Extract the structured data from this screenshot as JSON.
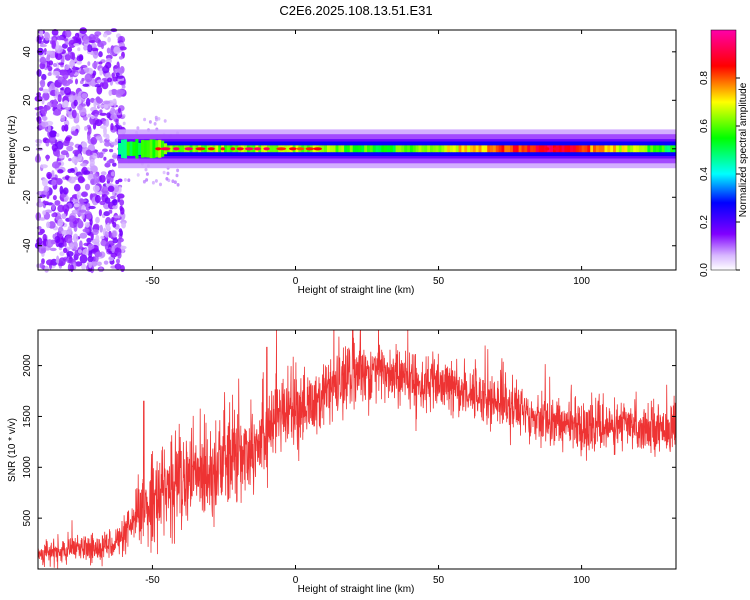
{
  "title": "C2E6.2025.108.13.51.E31",
  "chart_data": [
    {
      "type": "heatmap",
      "xlabel": "Height of straight line (km)",
      "ylabel": "Frequency (Hz)",
      "xlim": [
        -90,
        133
      ],
      "ylim": [
        -50,
        49
      ],
      "x_ticks": [
        -50,
        0,
        50,
        100
      ],
      "y_ticks": [
        -40,
        -20,
        0,
        20,
        40
      ],
      "colorbar": {
        "label": "Normalized spectral amplitude",
        "range": [
          0,
          1
        ],
        "ticks": [
          "0.0",
          "0.2",
          "0.4",
          "0.6",
          "0.8"
        ],
        "colormap": [
          "#ffffff",
          "#8000ff",
          "#0000ff",
          "#00ffff",
          "#00ff00",
          "#ffff00",
          "#ff0000",
          "#ff00aa"
        ]
      },
      "band": {
        "center_hz": 0,
        "noise_region_x": [
          -90,
          -60
        ],
        "bright_segments": [
          {
            "x": [
              -48,
              -10
            ],
            "amplitude": 0.95
          },
          {
            "x": [
              -5,
              10
            ],
            "amplitude": 0.9
          },
          {
            "x": [
              88,
              95
            ],
            "amplitude": 0.9
          }
        ],
        "band_amplitude_profile": [
          {
            "x": -62,
            "amplitude": 0.5
          },
          {
            "x": -50,
            "amplitude": 0.6
          },
          {
            "x": 0,
            "amplitude": 0.65
          },
          {
            "x": 30,
            "amplitude": 0.55
          },
          {
            "x": 90,
            "amplitude": 0.9
          },
          {
            "x": 133,
            "amplitude": 0.5
          }
        ]
      }
    },
    {
      "type": "line",
      "xlabel": "Height of straight line (km)",
      "ylabel": "SNR (10 * v/v)",
      "xlim": [
        -90,
        133
      ],
      "ylim": [
        0,
        2350
      ],
      "x_ticks": [
        -50,
        0,
        50,
        100
      ],
      "y_ticks": [
        500,
        1000,
        1500,
        2000
      ],
      "series": [
        {
          "color": "#ee3333",
          "trend": {
            "x": [
              -90,
              -70,
              -60,
              -55,
              -50,
              -45,
              -40,
              -30,
              -20,
              -15,
              -10,
              -5,
              0,
              5,
              10,
              15,
              20,
              25,
              30,
              35,
              40,
              50,
              60,
              70,
              80,
              90,
              100,
              110,
              120,
              133
            ],
            "y": [
              150,
              200,
              300,
              500,
              700,
              800,
              850,
              1000,
              1100,
              1250,
              1400,
              1500,
              1550,
              1600,
              1700,
              1800,
              1900,
              1950,
              1950,
              1900,
              1850,
              1800,
              1750,
              1650,
              1550,
              1450,
              1400,
              1400,
              1400,
              1400
            ]
          },
          "noise_amplitude": {
            "x": [
              -90,
              -60,
              -50,
              -20,
              0,
              20,
              50,
              133
            ],
            "y": [
              60,
              90,
              250,
              300,
              200,
              180,
              150,
              130
            ]
          },
          "peaks": [
            {
              "x": -53,
              "y": 1650
            },
            {
              "x": -10,
              "y": 2180
            },
            {
              "x": 20,
              "y": 2350
            }
          ]
        }
      ]
    }
  ]
}
